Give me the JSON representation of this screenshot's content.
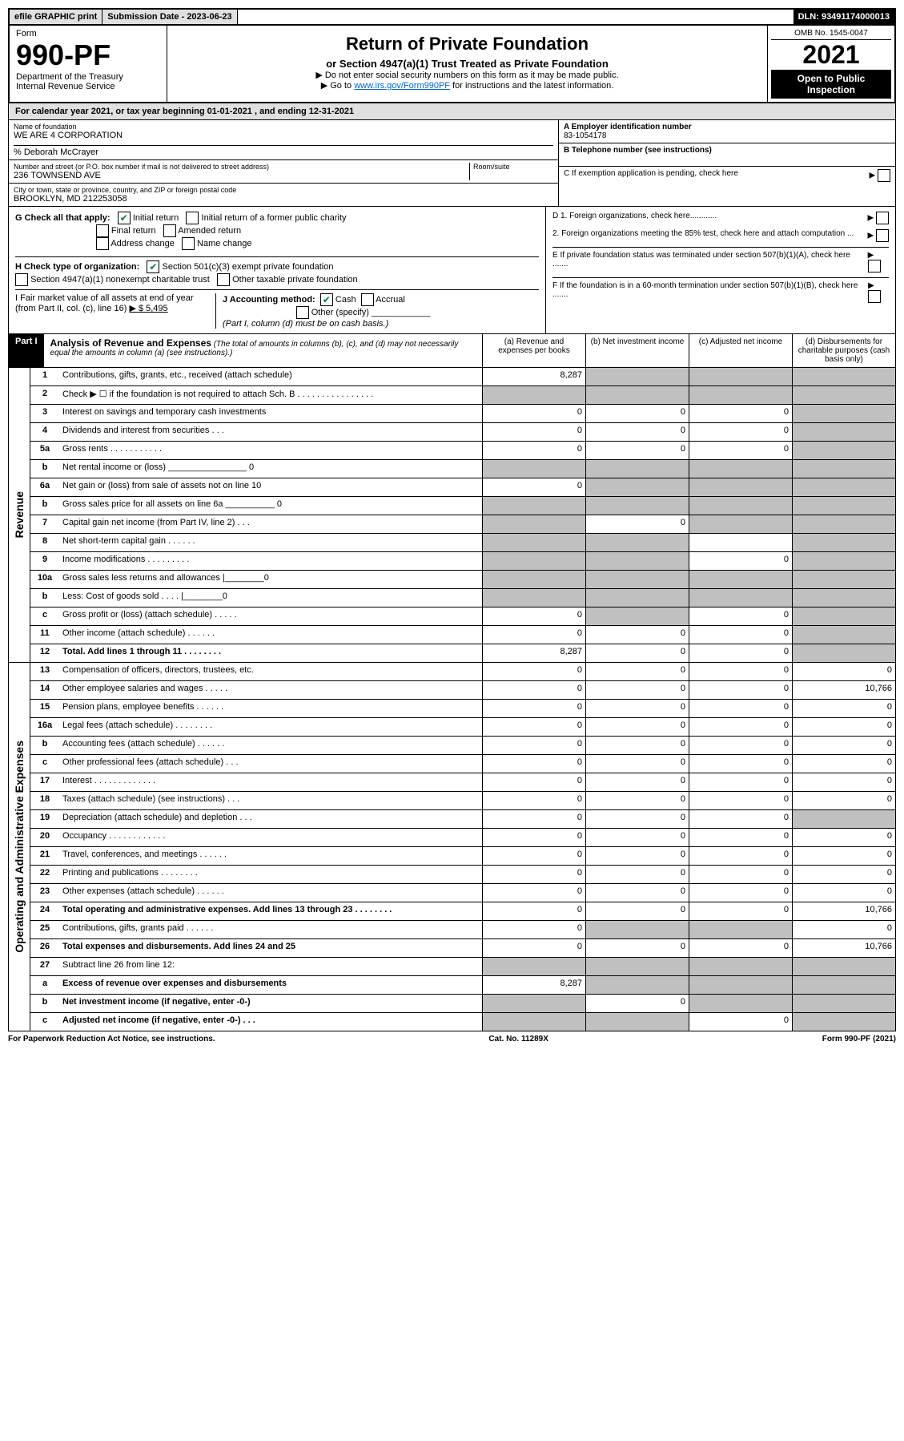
{
  "top": {
    "efile": "efile GRAPHIC print",
    "subdate_label": "Submission Date - 2023-06-23",
    "dln": "DLN: 93491174000013"
  },
  "header": {
    "form_label": "Form",
    "form_no": "990-PF",
    "dept": "Department of the Treasury",
    "irs": "Internal Revenue Service",
    "title": "Return of Private Foundation",
    "subtitle": "or Section 4947(a)(1) Trust Treated as Private Foundation",
    "instr1": "▶ Do not enter social security numbers on this form as it may be made public.",
    "instr2_pre": "▶ Go to ",
    "instr2_link": "www.irs.gov/Form990PF",
    "instr2_post": " for instructions and the latest information.",
    "omb": "OMB No. 1545-0047",
    "year": "2021",
    "open": "Open to Public Inspection"
  },
  "calyear": "For calendar year 2021, or tax year beginning 01-01-2021                               , and ending 12-31-2021",
  "info": {
    "name_label": "Name of foundation",
    "name": "WE ARE 4 CORPORATION",
    "care_of": "% Deborah McCrayer",
    "addr_label": "Number and street (or P.O. box number if mail is not delivered to street address)",
    "addr": "236 TOWNSEND AVE",
    "room_label": "Room/suite",
    "city_label": "City or town, state or province, country, and ZIP or foreign postal code",
    "city": "BROOKLYN, MD  212253058",
    "a_label": "A Employer identification number",
    "ein": "83-1054178",
    "b_label": "B Telephone number (see instructions)",
    "c_label": "C If exemption application is pending, check here",
    "d1": "D 1. Foreign organizations, check here............",
    "d2": "2. Foreign organizations meeting the 85% test, check here and attach computation ...",
    "e_label": "E  If private foundation status was terminated under section 507(b)(1)(A), check here .......",
    "f_label": "F  If the foundation is in a 60-month termination under section 507(b)(1)(B), check here .......",
    "g_label": "G Check all that apply:",
    "g_opts": [
      "Initial return",
      "Initial return of a former public charity",
      "Final return",
      "Amended return",
      "Address change",
      "Name change"
    ],
    "h_label": "H Check type of organization:",
    "h_opts": [
      "Section 501(c)(3) exempt private foundation",
      "Section 4947(a)(1) nonexempt charitable trust",
      "Other taxable private foundation"
    ],
    "i_label": "I Fair market value of all assets at end of year (from Part II, col. (c), line 16)",
    "i_val": "▶ $  5,495",
    "j_label": "J Accounting method:",
    "j_opts": [
      "Cash",
      "Accrual",
      "Other (specify)"
    ],
    "j_note": "(Part I, column (d) must be on cash basis.)"
  },
  "part1": {
    "label": "Part I",
    "title": "Analysis of Revenue and Expenses",
    "note": "(The total of amounts in columns (b), (c), and (d) may not necessarily equal the amounts in column (a) (see instructions).)",
    "cols": [
      "(a)   Revenue and expenses per books",
      "(b)   Net investment income",
      "(c)   Adjusted net income",
      "(d)   Disbursements for charitable purposes (cash basis only)"
    ]
  },
  "revenue_label": "Revenue",
  "oae_label": "Operating and Administrative Expenses",
  "rows_rev": [
    {
      "n": "1",
      "d": "Contributions, gifts, grants, etc., received (attach schedule)",
      "a": "8,287",
      "b": "",
      "c": "",
      "bd": true,
      "cd": true,
      "dd": true
    },
    {
      "n": "2",
      "d": "Check ▶ ☐ if the foundation is not required to attach Sch. B   .  .  .  .  .  .  .  .  .  .  .  .  .  .  .  .",
      "a": "",
      "b": "",
      "c": "",
      "ad": true,
      "bd": true,
      "cd": true,
      "dd": true
    },
    {
      "n": "3",
      "d": "Interest on savings and temporary cash investments",
      "a": "0",
      "b": "0",
      "c": "0",
      "dd": true
    },
    {
      "n": "4",
      "d": "Dividends and interest from securities   .   .   .",
      "a": "0",
      "b": "0",
      "c": "0",
      "dd": true
    },
    {
      "n": "5a",
      "d": "Gross rents   .   .   .   .   .   .   .   .   .   .   .",
      "a": "0",
      "b": "0",
      "c": "0",
      "dd": true
    },
    {
      "n": "b",
      "d": "Net rental income or (loss) ________________ 0",
      "ad": true,
      "bd": true,
      "cd": true,
      "dd": true
    },
    {
      "n": "6a",
      "d": "Net gain or (loss) from sale of assets not on line 10",
      "a": "0",
      "bd": true,
      "cd": true,
      "dd": true
    },
    {
      "n": "b",
      "d": "Gross sales price for all assets on line 6a __________ 0",
      "ad": true,
      "bd": true,
      "cd": true,
      "dd": true
    },
    {
      "n": "7",
      "d": "Capital gain net income (from Part IV, line 2)    .   .   .",
      "ad": true,
      "b": "0",
      "cd": true,
      "dd": true
    },
    {
      "n": "8",
      "d": "Net short-term capital gain   .   .   .   .   .   .",
      "ad": true,
      "bd": true,
      "dd": true
    },
    {
      "n": "9",
      "d": "Income modifications   .   .   .   .   .   .   .   .   .",
      "ad": true,
      "bd": true,
      "c": "0",
      "dd": true
    },
    {
      "n": "10a",
      "d": "Gross sales less returns and allowances    |________0",
      "ad": true,
      "bd": true,
      "cd": true,
      "dd": true
    },
    {
      "n": "b",
      "d": "Less: Cost of goods sold    .   .   .   .    |________0",
      "ad": true,
      "bd": true,
      "cd": true,
      "dd": true
    },
    {
      "n": "c",
      "d": "Gross profit or (loss) (attach schedule)    .   .   .   .   .",
      "a": "0",
      "bd": true,
      "c": "0",
      "dd": true
    },
    {
      "n": "11",
      "d": "Other income (attach schedule)    .   .   .   .   .   .",
      "a": "0",
      "b": "0",
      "c": "0",
      "dd": true
    },
    {
      "n": "12",
      "d": "Total. Add lines 1 through 11    .   .   .   .   .   .   .   .",
      "a": "8,287",
      "b": "0",
      "c": "0",
      "dd": true,
      "bold": true
    }
  ],
  "rows_exp": [
    {
      "n": "13",
      "d": "Compensation of officers, directors, trustees, etc.",
      "a": "0",
      "b": "0",
      "c": "0",
      "e": "0"
    },
    {
      "n": "14",
      "d": "Other employee salaries and wages    .   .   .   .   .",
      "a": "0",
      "b": "0",
      "c": "0",
      "e": "10,766"
    },
    {
      "n": "15",
      "d": "Pension plans, employee benefits    .   .   .   .   .   .",
      "a": "0",
      "b": "0",
      "c": "0",
      "e": "0"
    },
    {
      "n": "16a",
      "d": "Legal fees (attach schedule)   .   .   .   .   .   .   .   .",
      "a": "0",
      "b": "0",
      "c": "0",
      "e": "0"
    },
    {
      "n": "b",
      "d": "Accounting fees (attach schedule)   .   .   .   .   .   .",
      "a": "0",
      "b": "0",
      "c": "0",
      "e": "0"
    },
    {
      "n": "c",
      "d": "Other professional fees (attach schedule)    .   .   .",
      "a": "0",
      "b": "0",
      "c": "0",
      "e": "0"
    },
    {
      "n": "17",
      "d": "Interest   .   .   .   .   .   .   .   .   .   .   .   .   .",
      "a": "0",
      "b": "0",
      "c": "0",
      "e": "0"
    },
    {
      "n": "18",
      "d": "Taxes (attach schedule) (see instructions)    .   .   .",
      "a": "0",
      "b": "0",
      "c": "0",
      "e": "0"
    },
    {
      "n": "19",
      "d": "Depreciation (attach schedule) and depletion    .   .   .",
      "a": "0",
      "b": "0",
      "c": "0",
      "ed": true
    },
    {
      "n": "20",
      "d": "Occupancy   .   .   .   .   .   .   .   .   .   .   .   .",
      "a": "0",
      "b": "0",
      "c": "0",
      "e": "0"
    },
    {
      "n": "21",
      "d": "Travel, conferences, and meetings   .   .   .   .   .   .",
      "a": "0",
      "b": "0",
      "c": "0",
      "e": "0"
    },
    {
      "n": "22",
      "d": "Printing and publications   .   .   .   .   .   .   .   .",
      "a": "0",
      "b": "0",
      "c": "0",
      "e": "0"
    },
    {
      "n": "23",
      "d": "Other expenses (attach schedule)   .   .   .   .   .   .",
      "a": "0",
      "b": "0",
      "c": "0",
      "e": "0"
    },
    {
      "n": "24",
      "d": "Total operating and administrative expenses. Add lines 13 through 23    .   .   .   .   .   .   .   .",
      "a": "0",
      "b": "0",
      "c": "0",
      "e": "10,766",
      "bold": true
    },
    {
      "n": "25",
      "d": "Contributions, gifts, grants paid    .   .   .   .   .   .",
      "a": "0",
      "bd": true,
      "cd": true,
      "e": "0"
    },
    {
      "n": "26",
      "d": "Total expenses and disbursements. Add lines 24 and 25",
      "a": "0",
      "b": "0",
      "c": "0",
      "e": "10,766",
      "bold": true
    },
    {
      "n": "27",
      "d": "Subtract line 26 from line 12:",
      "ad": true,
      "bd": true,
      "cd": true,
      "ed": true
    },
    {
      "n": "a",
      "d": "Excess of revenue over expenses and disbursements",
      "a": "8,287",
      "bd": true,
      "cd": true,
      "ed": true,
      "bold": true
    },
    {
      "n": "b",
      "d": "Net investment income (if negative, enter -0-)",
      "ad": true,
      "b": "0",
      "cd": true,
      "ed": true,
      "bold": true
    },
    {
      "n": "c",
      "d": "Adjusted net income (if negative, enter -0-)   .   .   .",
      "ad": true,
      "bd": true,
      "c": "0",
      "ed": true,
      "bold": true
    }
  ],
  "footer": {
    "left": "For Paperwork Reduction Act Notice, see instructions.",
    "mid": "Cat. No. 11289X",
    "right": "Form 990-PF (2021)"
  }
}
